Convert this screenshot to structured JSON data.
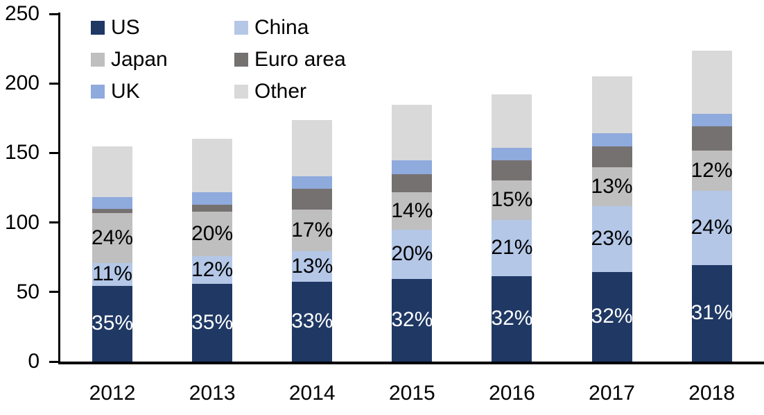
{
  "chart_data": {
    "type": "bar",
    "stacked": true,
    "title": "",
    "xlabel": "",
    "ylabel": "",
    "background_color": "#FFFFFF",
    "axis_color": "#000000",
    "text_color": "#000000",
    "grid": false,
    "legend_position": "top-left",
    "ylim": [
      0,
      250
    ],
    "yticks": [
      0,
      50,
      100,
      150,
      200,
      250
    ],
    "categories": [
      "2012",
      "2013",
      "2014",
      "2015",
      "2016",
      "2017",
      "2018"
    ],
    "series": [
      {
        "name": "US",
        "color": "#1F3864",
        "values": [
          54.5,
          56,
          57.5,
          59.5,
          61.5,
          64.5,
          69.5
        ],
        "labels": [
          "35%",
          "35%",
          "33%",
          "32%",
          "32%",
          "32%",
          "31%"
        ],
        "label_color": "#FFFFFF"
      },
      {
        "name": "China",
        "color": "#B4C7E7",
        "values": [
          16.5,
          20,
          22,
          35.5,
          40.5,
          47.5,
          53.5
        ],
        "labels": [
          "11%",
          "12%",
          "13%",
          "20%",
          "21%",
          "23%",
          "24%"
        ],
        "label_color": "#000000"
      },
      {
        "name": "Japan",
        "color": "#BFBFBF",
        "values": [
          36,
          32,
          30,
          27,
          28.5,
          27.5,
          28.5
        ],
        "labels": [
          "24%",
          "20%",
          "17%",
          "14%",
          "15%",
          "13%",
          "12%"
        ],
        "label_color": "#000000"
      },
      {
        "name": "Euro area",
        "color": "#767171",
        "values": [
          3,
          5,
          15,
          12.5,
          14,
          15,
          17.5
        ]
      },
      {
        "name": "UK",
        "color": "#8FAADC",
        "values": [
          8.5,
          9,
          9,
          10,
          9,
          9.5,
          9
        ]
      },
      {
        "name": "Other",
        "color": "#D9D9D9",
        "values": [
          36,
          38,
          40,
          40,
          38.5,
          41,
          45.5
        ]
      }
    ],
    "legend_order": [
      "US",
      "China",
      "Japan",
      "Euro area",
      "UK",
      "Other"
    ]
  }
}
